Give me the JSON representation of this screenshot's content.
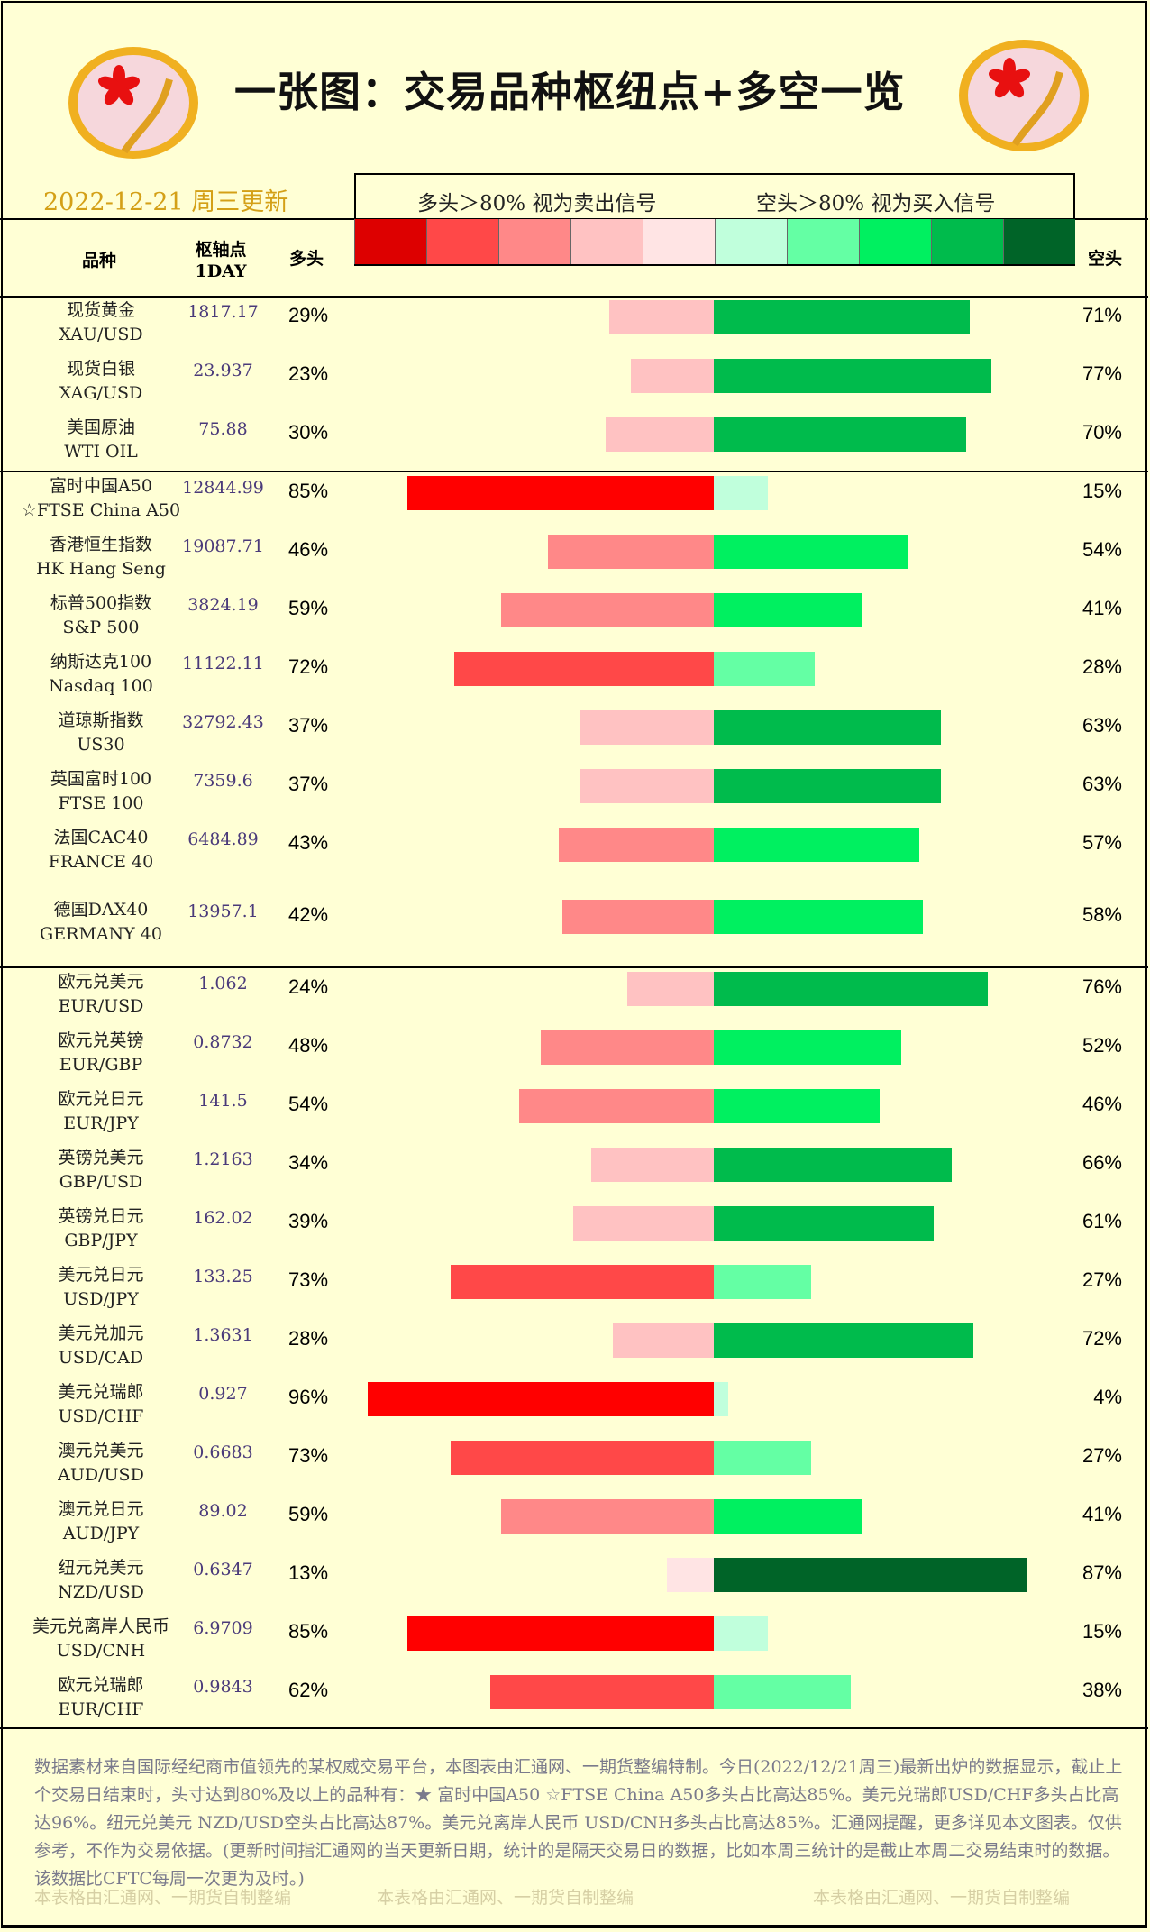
{
  "header": {
    "title": "一张图：交易品种枢纽点+多空一览",
    "date": "2022-12-21 周三更新",
    "legend_long": "多头＞80% 视为卖出信号",
    "legend_short": "空头＞80% 视为买入信号",
    "logo_text": "fx678 yly"
  },
  "columns": {
    "name": "品种",
    "pivot": "枢轴点",
    "pivot_sub": "1DAY",
    "long": "多头",
    "short": "空头"
  },
  "colors": {
    "scale": [
      "#dd0000",
      "#ff4848",
      "#ff8888",
      "#ffc2c2",
      "#ffe4e4",
      "#c0ffdc",
      "#64ffa4",
      "#00f060",
      "#00bb4c",
      "#006428"
    ],
    "strong_long": "#ff0000"
  },
  "groups": [
    [
      {
        "cn": "现货黄金",
        "en": "XAU/USD",
        "pivot": "1817.17",
        "long": 29,
        "short": 71
      },
      {
        "cn": "现货白银",
        "en": "XAG/USD",
        "pivot": "23.937",
        "long": 23,
        "short": 77
      },
      {
        "cn": "美国原油",
        "en": "WTI OIL",
        "pivot": "75.88",
        "long": 30,
        "short": 70
      }
    ],
    [
      {
        "cn": "富时中国A50",
        "en": "☆FTSE China A50",
        "pivot": "12844.99",
        "long": 85,
        "short": 15
      },
      {
        "cn": "香港恒生指数",
        "en": "HK Hang Seng",
        "pivot": "19087.71",
        "long": 46,
        "short": 54
      },
      {
        "cn": "标普500指数",
        "en": "S&P 500",
        "pivot": "3824.19",
        "long": 59,
        "short": 41
      },
      {
        "cn": "纳斯达克100",
        "en": "Nasdaq 100",
        "pivot": "11122.11",
        "long": 72,
        "short": 28
      },
      {
        "cn": "道琼斯指数",
        "en": "US30",
        "pivot": "32792.43",
        "long": 37,
        "short": 63
      },
      {
        "cn": "英国富时100",
        "en": "FTSE 100",
        "pivot": "7359.6",
        "long": 37,
        "short": 63
      },
      {
        "cn": "法国CAC40",
        "en": "FRANCE 40",
        "pivot": "6484.89",
        "long": 43,
        "short": 57
      },
      {
        "cn": "德国DAX40",
        "en": "GERMANY 40",
        "pivot": "13957.1",
        "long": 42,
        "short": 58
      }
    ],
    [
      {
        "cn": "欧元兑美元",
        "en": "EUR/USD",
        "pivot": "1.062",
        "long": 24,
        "short": 76
      },
      {
        "cn": "欧元兑英镑",
        "en": "EUR/GBP",
        "pivot": "0.8732",
        "long": 48,
        "short": 52
      },
      {
        "cn": "欧元兑日元",
        "en": "EUR/JPY",
        "pivot": "141.5",
        "long": 54,
        "short": 46
      },
      {
        "cn": "英镑兑美元",
        "en": "GBP/USD",
        "pivot": "1.2163",
        "long": 34,
        "short": 66
      },
      {
        "cn": "英镑兑日元",
        "en": "GBP/JPY",
        "pivot": "162.02",
        "long": 39,
        "short": 61
      },
      {
        "cn": "美元兑日元",
        "en": "USD/JPY",
        "pivot": "133.25",
        "long": 73,
        "short": 27
      },
      {
        "cn": "美元兑加元",
        "en": "USD/CAD",
        "pivot": "1.3631",
        "long": 28,
        "short": 72
      },
      {
        "cn": "美元兑瑞郎",
        "en": "USD/CHF",
        "pivot": "0.927",
        "long": 96,
        "short": 4
      },
      {
        "cn": "澳元兑美元",
        "en": "AUD/USD",
        "pivot": "0.6683",
        "long": 73,
        "short": 27
      },
      {
        "cn": "澳元兑日元",
        "en": "AUD/JPY",
        "pivot": "89.02",
        "long": 59,
        "short": 41
      },
      {
        "cn": "纽元兑美元",
        "en": "NZD/USD",
        "pivot": "0.6347",
        "long": 13,
        "short": 87
      },
      {
        "cn": "美元兑离岸人民币",
        "en": "USD/CNH",
        "pivot": "6.9709",
        "long": 85,
        "short": 15
      },
      {
        "cn": "欧元兑瑞郎",
        "en": "EUR/CHF",
        "pivot": "0.9843",
        "long": 62,
        "short": 38
      }
    ]
  ],
  "footer": {
    "note": "数据素材来自国际经纪商市值领先的某权威交易平台，本图表由汇通网、一期货整编特制。今日(2022/12/21周三)最新出炉的数据显示，截止上个交易日结束时，头寸达到80%及以上的品种有：★ 富时中国A50 ☆FTSE China A50多头占比高达85%。美元兑瑞郎USD/CHF多头占比高达96%。纽元兑美元 NZD/USD空头占比高达87%。美元兑离岸人民币 USD/CNH多头占比高达85%。汇通网提醒，更多详见本文图表。仅供参考，不作为交易依据。(更新时间指汇通网的当天更新日期，统计的是隔天交易日的数据，比如本周三统计的是截止本周二交易结束时的数据。该数据比CFTC每周一次更为及时。)",
    "credit": "本表格由汇通网、一期货自制整编"
  }
}
